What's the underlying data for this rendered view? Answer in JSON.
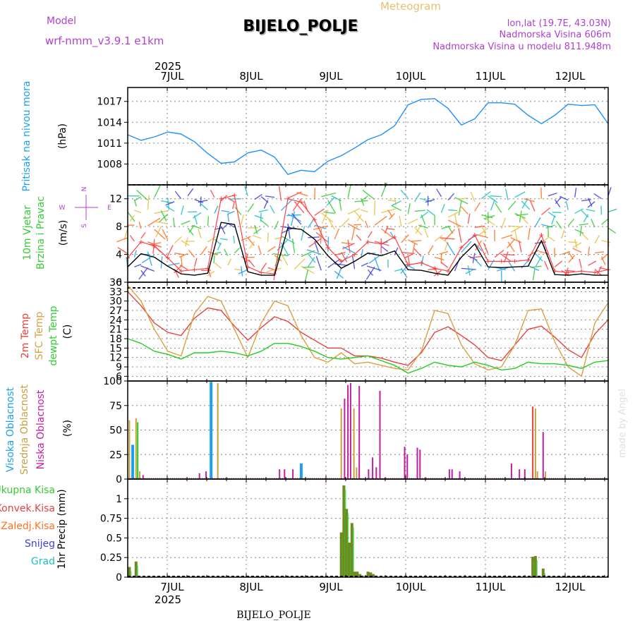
{
  "header": {
    "model_label": "Model",
    "model_name": "wrf-nmm_v3.9.1  e1km",
    "station": "BIJELO_POLJE",
    "meteogram_label": "Meteogram",
    "lonlat": "lon,lat (19.7E, 43.03N)",
    "altitude": "Nadmorska Visina 606m",
    "model_altitude": "Nadmorska Visina u modelu 811.948m",
    "year_label": "2025",
    "footer_station": "BIJELO_POLJE",
    "watermark": "made by Angel"
  },
  "colors": {
    "pressure": "#1e90ff",
    "temp2m": "#e8403c",
    "sfc_temp": "#daa040",
    "dewpt": "#22cc22",
    "high_cloud": "#1aa0ee",
    "mid_cloud": "#c8a040",
    "low_cloud": "#c020a0",
    "total_precip": "#33cc33",
    "conv_precip": "#e84040",
    "frozen_precip": "#ff7020",
    "snow": "#4040dd",
    "hail": "#20c0c0",
    "wind_speed": "#000000",
    "wind_gust": "#ff4040",
    "axis_label_purple": "#b040d0",
    "header_orange": "#e8c070"
  },
  "chart_data": [
    {
      "type": "line",
      "panel": "pressure",
      "ylabel_1": "Pritisak na nivou mora",
      "ylabel_2": "(hPa)",
      "ylim": [
        1005,
        1019
      ],
      "yticks": [
        "1008",
        "1011",
        "1014",
        "1017"
      ],
      "xlabels": [
        "7JUL",
        "8JUL",
        "9JUL",
        "10JUL",
        "11JUL",
        "12JUL"
      ],
      "x_hours": [
        0,
        4,
        8,
        12,
        16,
        20,
        24,
        28,
        32,
        36,
        40,
        44,
        48,
        52,
        56,
        60,
        64,
        68,
        72,
        76,
        80,
        84,
        88,
        92,
        96,
        100,
        104,
        108,
        112,
        116,
        120,
        124,
        128,
        132,
        136,
        140,
        144
      ],
      "series": [
        {
          "values": [
            1012.2,
            1011.4,
            1011.9,
            1012.6,
            1012.3,
            1011.2,
            1009.5,
            1008.1,
            1008.3,
            1009.6,
            1010.0,
            1009.0,
            1006.5,
            1007.1,
            1006.9,
            1008.4,
            1009.2,
            1010.3,
            1011.5,
            1012.2,
            1013.5,
            1016.5,
            1017.3,
            1017.4,
            1016.0,
            1013.6,
            1014.5,
            1016.8,
            1016.8,
            1016.6,
            1015.0,
            1013.8,
            1015.0,
            1016.6,
            1016.4,
            1016.5,
            1013.8
          ]
        }
      ]
    },
    {
      "type": "line",
      "panel": "wind",
      "ylabel_1": "10m Vjetar",
      "ylabel_2": "Brzina i Pravac",
      "ylabel_3": "(m/s)",
      "compass": [
        "N",
        "W",
        "E",
        "S"
      ],
      "ylim": [
        0,
        14
      ],
      "yticks": [
        "0",
        "4",
        "8",
        "12"
      ],
      "x_hours": [
        0,
        4,
        8,
        12,
        16,
        20,
        24,
        28,
        32,
        36,
        40,
        44,
        48,
        52,
        56,
        60,
        64,
        68,
        72,
        76,
        80,
        84,
        88,
        92,
        96,
        100,
        104,
        108,
        112,
        116,
        120,
        124,
        128,
        132,
        136,
        140,
        144
      ],
      "series": [
        {
          "name": "speed",
          "values": [
            2.2,
            4.1,
            3.6,
            2.3,
            1.2,
            1.0,
            1.3,
            8.6,
            8.3,
            1.5,
            1.0,
            1.0,
            7.8,
            7.6,
            6.2,
            3.8,
            2.0,
            3.0,
            4.2,
            3.8,
            4.5,
            1.8,
            1.7,
            1.3,
            1.0,
            3.6,
            5.5,
            2.2,
            2.1,
            2.2,
            2.3,
            6.0,
            1.1,
            1.0,
            1.2,
            1.0,
            1.0
          ]
        },
        {
          "name": "gust",
          "values": [
            3.5,
            5.8,
            5.2,
            3.5,
            1.6,
            1.8,
            2.0,
            12.0,
            12.5,
            2.2,
            1.4,
            1.2,
            12.0,
            11.5,
            9.0,
            5.0,
            3.0,
            4.0,
            5.8,
            5.5,
            6.5,
            2.5,
            2.8,
            2.0,
            1.6,
            5.0,
            6.8,
            3.0,
            3.0,
            3.0,
            3.2,
            6.8,
            1.6,
            1.4,
            1.6,
            1.4,
            1.8
          ]
        }
      ]
    },
    {
      "type": "line",
      "panel": "temperature",
      "ylabel_1": "2m Temp",
      "ylabel_2": "SFC Temp",
      "ylabel_3": "dewpt Temp",
      "ylabel_4": "(C)",
      "ylim": [
        4.5,
        36
      ],
      "yticks": [
        "6",
        "9",
        "12",
        "15",
        "18",
        "21",
        "24",
        "27",
        "30",
        "33",
        "36"
      ],
      "x_hours": [
        0,
        4,
        8,
        12,
        16,
        20,
        24,
        28,
        32,
        36,
        40,
        44,
        48,
        52,
        56,
        60,
        64,
        68,
        72,
        76,
        80,
        84,
        88,
        92,
        96,
        100,
        104,
        108,
        112,
        116,
        120,
        124,
        128,
        132,
        136,
        140,
        144
      ],
      "series": [
        {
          "name": "2m Temp",
          "values": [
            33.0,
            28.5,
            23.0,
            20.0,
            19.0,
            24.5,
            27.8,
            27.0,
            22.0,
            17.5,
            21.5,
            25.0,
            23.5,
            20.0,
            17.5,
            15.0,
            15.0,
            12.5,
            12.5,
            11.8,
            10.5,
            9.5,
            13.5,
            20.0,
            21.8,
            19.0,
            16.0,
            12.0,
            11.0,
            16.0,
            21.0,
            22.0,
            18.5,
            14.5,
            12.0,
            19.5,
            24.0
          ]
        },
        {
          "name": "SFC Temp",
          "values": [
            35.0,
            30.0,
            21.0,
            14.0,
            12.5,
            26.0,
            31.5,
            30.0,
            21.0,
            12.0,
            23.0,
            30.0,
            28.5,
            19.0,
            12.0,
            10.5,
            13.5,
            10.0,
            10.5,
            9.5,
            8.5,
            8.0,
            14.0,
            27.0,
            26.0,
            16.0,
            10.0,
            8.0,
            9.0,
            16.0,
            27.0,
            27.5,
            17.0,
            9.0,
            6.0,
            23.0,
            29.5
          ]
        },
        {
          "name": "dewpt Temp",
          "values": [
            18.0,
            16.5,
            14.0,
            13.0,
            11.5,
            13.5,
            13.5,
            14.0,
            13.5,
            12.5,
            14.0,
            16.5,
            16.5,
            15.5,
            14.0,
            12.0,
            11.5,
            12.0,
            12.5,
            11.0,
            9.5,
            7.0,
            8.5,
            10.5,
            9.5,
            9.0,
            10.5,
            9.5,
            8.0,
            8.5,
            10.5,
            10.0,
            10.0,
            9.5,
            8.5,
            10.5,
            11.0
          ]
        }
      ]
    },
    {
      "type": "bar",
      "panel": "cloud",
      "ylabel_1": "Visoka Oblacnost",
      "ylabel_2": "Srednja Oblacnost",
      "ylabel_3": "Niska Oblacnost",
      "ylabel_4": "(%)",
      "ylim": [
        0,
        100
      ],
      "yticks": [
        "0",
        "25",
        "50",
        "75",
        "100"
      ],
      "bars": [
        {
          "hour": 0.5,
          "value": 60,
          "series": "Srednja"
        },
        {
          "hour": 1.5,
          "value": 35,
          "series": "Visoka"
        },
        {
          "hour": 2.5,
          "value": 62,
          "series": "Srednja"
        },
        {
          "hour": 3.0,
          "value": 58,
          "series": "Dewpt"
        },
        {
          "hour": 3.6,
          "value": 8,
          "series": "Srednja"
        },
        {
          "hour": 4.6,
          "value": 4,
          "series": "Niska"
        },
        {
          "hour": 21.5,
          "value": 6,
          "series": "Niska"
        },
        {
          "hour": 23.5,
          "value": 8,
          "series": "Niska"
        },
        {
          "hour": 25.0,
          "value": 99,
          "series": "Visoka"
        },
        {
          "hour": 27.0,
          "value": 98,
          "series": "Srednja"
        },
        {
          "hour": 45.5,
          "value": 10,
          "series": "Niska"
        },
        {
          "hour": 47.0,
          "value": 10,
          "series": "Niska"
        },
        {
          "hour": 49.5,
          "value": 10,
          "series": "Niska"
        },
        {
          "hour": 52.0,
          "value": 16,
          "series": "Visoka"
        },
        {
          "hour": 64.0,
          "value": 72,
          "series": "Srednja"
        },
        {
          "hour": 65.0,
          "value": 82,
          "series": "Niska"
        },
        {
          "hour": 66.0,
          "value": 96,
          "series": "Niska"
        },
        {
          "hour": 66.8,
          "value": 98,
          "series": "Niska"
        },
        {
          "hour": 67.8,
          "value": 72,
          "series": "Srednja"
        },
        {
          "hour": 68.6,
          "value": 12,
          "series": "Srednja"
        },
        {
          "hour": 69.4,
          "value": 95,
          "series": "Niska"
        },
        {
          "hour": 72.2,
          "value": 10,
          "series": "Niska"
        },
        {
          "hour": 73.4,
          "value": 22,
          "series": "Niska"
        },
        {
          "hour": 74.5,
          "value": 12,
          "series": "Niska"
        },
        {
          "hour": 75.6,
          "value": 90,
          "series": "Niska"
        },
        {
          "hour": 83.0,
          "value": 33,
          "series": "Niska"
        },
        {
          "hour": 83.8,
          "value": 25,
          "series": "Niska"
        },
        {
          "hour": 86.8,
          "value": 32,
          "series": "Niska"
        },
        {
          "hour": 87.6,
          "value": 30,
          "series": "Niska"
        },
        {
          "hour": 96.4,
          "value": 10,
          "series": "Niska"
        },
        {
          "hour": 97.2,
          "value": 10,
          "series": "Niska"
        },
        {
          "hour": 99.5,
          "value": 8,
          "series": "Niska"
        },
        {
          "hour": 115.0,
          "value": 16,
          "series": "Niska"
        },
        {
          "hour": 117.4,
          "value": 10,
          "series": "Niska"
        },
        {
          "hour": 119.0,
          "value": 10,
          "series": "Niska"
        },
        {
          "hour": 121.4,
          "value": 74,
          "series": "Konvek"
        },
        {
          "hour": 122.2,
          "value": 72,
          "series": "Srednja"
        },
        {
          "hour": 122.8,
          "value": 8,
          "series": "Srednja"
        },
        {
          "hour": 124.5,
          "value": 48,
          "series": "Niska"
        },
        {
          "hour": 125.2,
          "value": 8,
          "series": "Srednja"
        }
      ]
    },
    {
      "type": "bar",
      "panel": "precip",
      "ylabel": "1hr Precip (mm)",
      "legend": [
        "Ukupna Kisa",
        "Konvek.Kisa",
        "Zaledj.Kisa",
        "Snijeg",
        "Grad"
      ],
      "ylim": [
        0,
        1.25
      ],
      "yticks": [
        "0",
        "0.25",
        "0.5",
        "0.75",
        "1"
      ],
      "xlabels": [
        "7JUL",
        "8JUL",
        "9JUL",
        "10JUL",
        "11JUL",
        "12JUL"
      ],
      "bars": [
        {
          "hour": 0.5,
          "value": 0.13
        },
        {
          "hour": 2.5,
          "value": 0.2
        },
        {
          "hour": 64.0,
          "value": 0.57
        },
        {
          "hour": 64.8,
          "value": 1.17
        },
        {
          "hour": 65.6,
          "value": 0.87
        },
        {
          "hour": 66.4,
          "value": 0.44
        },
        {
          "hour": 67.2,
          "value": 0.69
        },
        {
          "hour": 68.0,
          "value": 0.07
        },
        {
          "hour": 68.8,
          "value": 0.07
        },
        {
          "hour": 69.6,
          "value": 0.04
        },
        {
          "hour": 70.4,
          "value": 0.02
        },
        {
          "hour": 72.0,
          "value": 0.07
        },
        {
          "hour": 72.8,
          "value": 0.06
        },
        {
          "hour": 73.6,
          "value": 0.04
        },
        {
          "hour": 74.4,
          "value": 0.02
        },
        {
          "hour": 121.4,
          "value": 0.26
        },
        {
          "hour": 122.2,
          "value": 0.27
        },
        {
          "hour": 124.5,
          "value": 0.11
        }
      ]
    }
  ]
}
